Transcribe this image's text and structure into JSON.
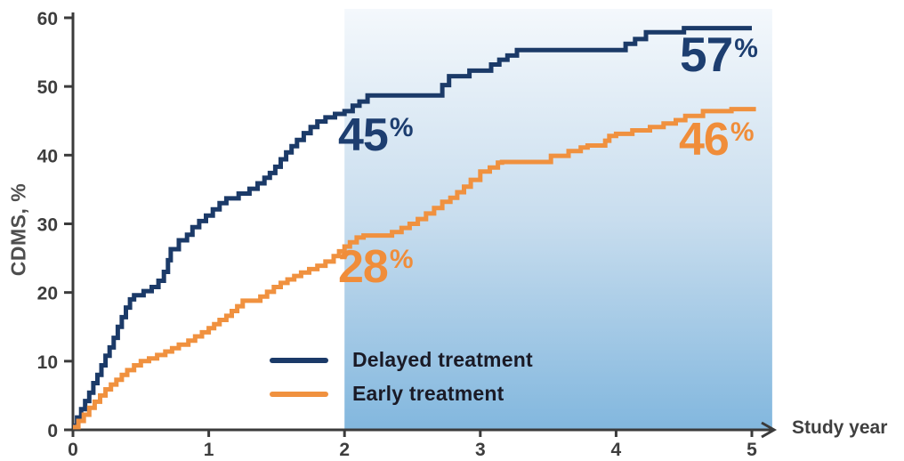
{
  "figure": {
    "y_axis": {
      "label": "CDMS, %",
      "ticks": [
        "0",
        "10",
        "20",
        "30",
        "40",
        "50",
        "60"
      ],
      "tick_values": [
        0,
        10,
        20,
        30,
        40,
        50,
        60
      ]
    },
    "x_axis": {
      "label": "Study year",
      "ticks": [
        "0",
        "1",
        "2",
        "3",
        "4",
        "5"
      ],
      "tick_values": [
        0,
        1,
        2,
        3,
        4,
        5
      ]
    },
    "legend": [
      {
        "id": "delayed",
        "label": "Delayed treatment",
        "color": "#1b3a68"
      },
      {
        "id": "early",
        "label": "Early treatment",
        "color": "#f0913f"
      }
    ],
    "annotations": [
      {
        "id": "delayed-2yr",
        "value": "45",
        "suffix": "%",
        "color": "#1d3e70"
      },
      {
        "id": "early-2yr",
        "value": "28",
        "suffix": "%",
        "color": "#f08d3a"
      },
      {
        "id": "delayed-5yr",
        "value": "57",
        "suffix": "%",
        "color": "#1d3e70"
      },
      {
        "id": "early-5yr",
        "value": "46",
        "suffix": "%",
        "color": "#f08d3a"
      }
    ],
    "colors": {
      "shade_top": "#f4f8fc",
      "shade_mid": "#c8ddee",
      "shade_bottom": "#82b7de",
      "axis": "#3b3b3b",
      "tick_text": "#3d3d3d"
    }
  },
  "chart_data": {
    "type": "line",
    "subtype": "kaplan-meier-step",
    "title": "",
    "xlabel": "Study year",
    "ylabel": "CDMS, %",
    "xlim": [
      0,
      5.2
    ],
    "ylim": [
      0,
      60
    ],
    "grid": false,
    "legend_position": "lower-center",
    "shaded_region_years": [
      2,
      5.15
    ],
    "key_values": {
      "delayed_2yr": 45,
      "early_2yr": 28,
      "delayed_5yr": 57,
      "early_5yr": 46
    },
    "series": [
      {
        "name": "Delayed treatment",
        "color": "#1b3a68",
        "points": [
          [
            0,
            0.6
          ],
          [
            0.03,
            1.8
          ],
          [
            0.06,
            3
          ],
          [
            0.09,
            4.2
          ],
          [
            0.12,
            5.4
          ],
          [
            0.15,
            6.8
          ],
          [
            0.18,
            8
          ],
          [
            0.21,
            9.4
          ],
          [
            0.24,
            10.8
          ],
          [
            0.27,
            12
          ],
          [
            0.3,
            13.4
          ],
          [
            0.33,
            15
          ],
          [
            0.36,
            16.4
          ],
          [
            0.39,
            17.8
          ],
          [
            0.42,
            19
          ],
          [
            0.45,
            19.6
          ],
          [
            0.52,
            20.2
          ],
          [
            0.58,
            20.8
          ],
          [
            0.63,
            21.7
          ],
          [
            0.67,
            23
          ],
          [
            0.7,
            24.7
          ],
          [
            0.72,
            26.3
          ],
          [
            0.78,
            27.6
          ],
          [
            0.84,
            28.4
          ],
          [
            0.88,
            29.5
          ],
          [
            0.93,
            30.4
          ],
          [
            0.98,
            31.2
          ],
          [
            1.03,
            32.1
          ],
          [
            1.08,
            33
          ],
          [
            1.13,
            33.7
          ],
          [
            1.22,
            34.4
          ],
          [
            1.3,
            35.1
          ],
          [
            1.36,
            35.9
          ],
          [
            1.41,
            36.7
          ],
          [
            1.45,
            37.4
          ],
          [
            1.49,
            38.3
          ],
          [
            1.53,
            39.4
          ],
          [
            1.57,
            40.4
          ],
          [
            1.61,
            41.3
          ],
          [
            1.65,
            42.2
          ],
          [
            1.7,
            43.2
          ],
          [
            1.75,
            44.1
          ],
          [
            1.8,
            44.9
          ],
          [
            1.86,
            45.5
          ],
          [
            1.93,
            46
          ],
          [
            2,
            46.4
          ],
          [
            2.06,
            47.2
          ],
          [
            2.11,
            47.8
          ],
          [
            2.17,
            48.7
          ],
          [
            2.72,
            50.2
          ],
          [
            2.77,
            51.5
          ],
          [
            2.92,
            52.3
          ],
          [
            3.08,
            53.2
          ],
          [
            3.14,
            53.9
          ],
          [
            3.2,
            54.5
          ],
          [
            3.27,
            55.3
          ],
          [
            4.07,
            56.2
          ],
          [
            4.14,
            56.9
          ],
          [
            4.22,
            57.9
          ],
          [
            4.5,
            58.5
          ],
          [
            5,
            58.5
          ]
        ]
      },
      {
        "name": "Early treatment",
        "color": "#f0913f",
        "points": [
          [
            0,
            0.4
          ],
          [
            0.04,
            1.3
          ],
          [
            0.08,
            2.2
          ],
          [
            0.12,
            3.2
          ],
          [
            0.16,
            4.1
          ],
          [
            0.2,
            5
          ],
          [
            0.24,
            5.9
          ],
          [
            0.28,
            6.6
          ],
          [
            0.32,
            7.3
          ],
          [
            0.36,
            8
          ],
          [
            0.4,
            8.7
          ],
          [
            0.45,
            9.4
          ],
          [
            0.5,
            10
          ],
          [
            0.56,
            10.4
          ],
          [
            0.62,
            10.9
          ],
          [
            0.68,
            11.4
          ],
          [
            0.73,
            11.9
          ],
          [
            0.78,
            12.4
          ],
          [
            0.85,
            13
          ],
          [
            0.9,
            13.6
          ],
          [
            0.95,
            14.2
          ],
          [
            1,
            14.8
          ],
          [
            1.04,
            15.4
          ],
          [
            1.08,
            16
          ],
          [
            1.13,
            16.6
          ],
          [
            1.17,
            17.3
          ],
          [
            1.21,
            18
          ],
          [
            1.25,
            18.8
          ],
          [
            1.38,
            19.4
          ],
          [
            1.43,
            20.1
          ],
          [
            1.48,
            20.8
          ],
          [
            1.53,
            21.4
          ],
          [
            1.58,
            21.9
          ],
          [
            1.63,
            22.4
          ],
          [
            1.68,
            22.9
          ],
          [
            1.74,
            23.4
          ],
          [
            1.8,
            23.9
          ],
          [
            1.86,
            24.5
          ],
          [
            1.92,
            25.3
          ],
          [
            1.96,
            26
          ],
          [
            2,
            26.7
          ],
          [
            2.04,
            27.3
          ],
          [
            2.09,
            28
          ],
          [
            2.14,
            28.3
          ],
          [
            2.35,
            28.8
          ],
          [
            2.42,
            29.4
          ],
          [
            2.48,
            30
          ],
          [
            2.54,
            30.7
          ],
          [
            2.6,
            31.5
          ],
          [
            2.66,
            32.3
          ],
          [
            2.72,
            33.2
          ],
          [
            2.78,
            33.8
          ],
          [
            2.83,
            34.6
          ],
          [
            2.88,
            35.4
          ],
          [
            2.93,
            36.4
          ],
          [
            3,
            37.6
          ],
          [
            3.07,
            38.2
          ],
          [
            3.13,
            38.9
          ],
          [
            3.16,
            39
          ],
          [
            3.52,
            39.9
          ],
          [
            3.65,
            40.6
          ],
          [
            3.74,
            41.1
          ],
          [
            3.79,
            41.4
          ],
          [
            3.92,
            42.1
          ],
          [
            3.95,
            42.8
          ],
          [
            4,
            43.1
          ],
          [
            4.12,
            43.6
          ],
          [
            4.25,
            44.1
          ],
          [
            4.35,
            44.6
          ],
          [
            4.44,
            45.1
          ],
          [
            4.51,
            45.7
          ],
          [
            4.64,
            46.4
          ],
          [
            4.85,
            46.7
          ],
          [
            5.03,
            46.7
          ]
        ]
      }
    ]
  }
}
